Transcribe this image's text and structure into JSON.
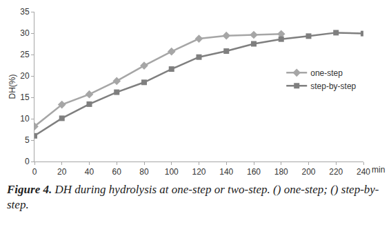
{
  "chart_data": {
    "type": "line",
    "x_label": "min",
    "y_label": "DH(%)",
    "caption_label": "Figure 4.",
    "caption": "DH during hydrolysis at one-step or two-step. () one-step; () step-by-step.",
    "series": [
      {
        "name": "one-step",
        "color": "#a6a6a6",
        "marker": "diamond",
        "line_style": "solid",
        "x": [
          0,
          20,
          40,
          60,
          80,
          100,
          120,
          140,
          160,
          180
        ],
        "values": [
          8.2,
          13.3,
          15.7,
          18.8,
          22.4,
          25.7,
          28.7,
          29.4,
          29.6,
          29.8
        ]
      },
      {
        "name": "step-by-step",
        "color": "#7f7f7f",
        "marker": "square",
        "line_style": "solid",
        "x": [
          0,
          20,
          40,
          60,
          80,
          100,
          120,
          140,
          160,
          180,
          200,
          220,
          240
        ],
        "values": [
          6.0,
          10.1,
          13.4,
          16.2,
          18.5,
          21.6,
          24.4,
          25.8,
          27.5,
          28.6,
          29.3,
          30.1,
          29.9
        ]
      }
    ],
    "xlim": [
      0,
      240
    ],
    "xticks": [
      0,
      20,
      40,
      60,
      80,
      100,
      120,
      140,
      160,
      180,
      200,
      220,
      240
    ],
    "ylim": [
      0,
      35
    ],
    "yticks": [
      0,
      5,
      10,
      15,
      20,
      25,
      30,
      35
    ],
    "grid": false,
    "legend": "right"
  }
}
